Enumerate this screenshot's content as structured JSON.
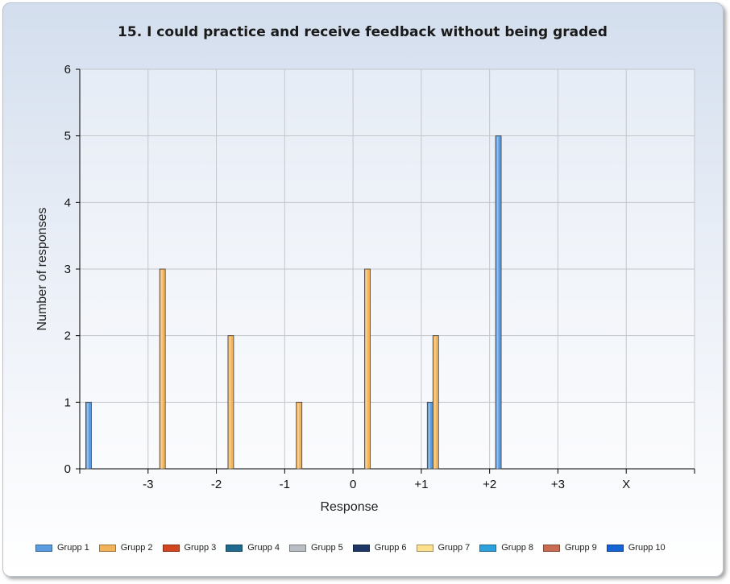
{
  "chart_data": {
    "type": "bar",
    "title": "15. I could practice and receive feedback without being graded",
    "xlabel": "Response",
    "ylabel": "Number of responses",
    "categories": [
      "-3",
      "-2",
      "-1",
      "0",
      "+1",
      "+2",
      "+3",
      "X"
    ],
    "yticks": [
      "0",
      "1",
      "2",
      "3",
      "4",
      "5",
      "6"
    ],
    "ylim": [
      0,
      6
    ],
    "grid": true,
    "legend_position": "bottom",
    "series": [
      {
        "name": "Grupp 1",
        "color": "#5b9be0",
        "values": [
          1,
          0,
          0,
          0,
          0,
          1,
          5,
          0
        ]
      },
      {
        "name": "Grupp 2",
        "color": "#f2b45a",
        "values": [
          0,
          3,
          2,
          1,
          3,
          2,
          0,
          0
        ]
      },
      {
        "name": "Grupp 3",
        "color": "#d2451e",
        "values": [
          0,
          0,
          0,
          0,
          0,
          0,
          0,
          0
        ]
      },
      {
        "name": "Grupp 4",
        "color": "#1f6a8e",
        "values": [
          0,
          0,
          0,
          0,
          0,
          0,
          0,
          0
        ]
      },
      {
        "name": "Grupp 5",
        "color": "#b9bec5",
        "values": [
          0,
          0,
          0,
          0,
          0,
          0,
          0,
          0
        ]
      },
      {
        "name": "Grupp 6",
        "color": "#1c3766",
        "values": [
          0,
          0,
          0,
          0,
          0,
          0,
          0,
          0
        ]
      },
      {
        "name": "Grupp 7",
        "color": "#fde08d",
        "values": [
          0,
          0,
          0,
          0,
          0,
          0,
          0,
          0
        ]
      },
      {
        "name": "Grupp 8",
        "color": "#2ea1dd",
        "values": [
          0,
          0,
          0,
          0,
          0,
          0,
          0,
          0
        ]
      },
      {
        "name": "Grupp 9",
        "color": "#c96b50",
        "values": [
          0,
          0,
          0,
          0,
          0,
          0,
          0,
          0
        ]
      },
      {
        "name": "Grupp 10",
        "color": "#1565d6",
        "values": [
          0,
          0,
          0,
          0,
          0,
          0,
          0,
          0
        ]
      }
    ]
  }
}
